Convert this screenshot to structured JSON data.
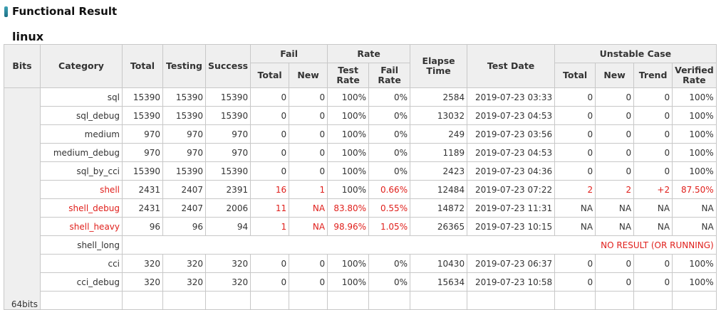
{
  "page": {
    "title": "Functional Result",
    "os": "linux"
  },
  "headers": {
    "bits": "Bits",
    "category": "Category",
    "total": "Total",
    "testing": "Testing",
    "success": "Success",
    "fail": "Fail",
    "fail_total": "Total",
    "fail_new": "New",
    "rate": "Rate",
    "test_rate": "Test Rate",
    "fail_rate": "Fail Rate",
    "elapse_time": "Elapse Time",
    "test_date": "Test Date",
    "unstable_case": "Unstable Case",
    "unstable_total": "Total",
    "unstable_new": "New",
    "unstable_trend": "Trend",
    "verified_rate": "Verified Rate"
  },
  "bits_group": "64bits",
  "rows": [
    {
      "category": "sql",
      "total": "15390",
      "testing": "15390",
      "success": "15390",
      "fail_total": "0",
      "fail_new": "0",
      "test_rate": "100%",
      "fail_rate": "0%",
      "elapse": "2584",
      "date": "2019-07-23 03:33",
      "u_total": "0",
      "u_new": "0",
      "u_trend": "0",
      "verified": "100%",
      "status": "ok"
    },
    {
      "category": "sql_debug",
      "total": "15390",
      "testing": "15390",
      "success": "15390",
      "fail_total": "0",
      "fail_new": "0",
      "test_rate": "100%",
      "fail_rate": "0%",
      "elapse": "13032",
      "date": "2019-07-23 04:53",
      "u_total": "0",
      "u_new": "0",
      "u_trend": "0",
      "verified": "100%",
      "status": "ok"
    },
    {
      "category": "medium",
      "total": "970",
      "testing": "970",
      "success": "970",
      "fail_total": "0",
      "fail_new": "0",
      "test_rate": "100%",
      "fail_rate": "0%",
      "elapse": "249",
      "date": "2019-07-23 03:56",
      "u_total": "0",
      "u_new": "0",
      "u_trend": "0",
      "verified": "100%",
      "status": "ok"
    },
    {
      "category": "medium_debug",
      "total": "970",
      "testing": "970",
      "success": "970",
      "fail_total": "0",
      "fail_new": "0",
      "test_rate": "100%",
      "fail_rate": "0%",
      "elapse": "1189",
      "date": "2019-07-23 04:53",
      "u_total": "0",
      "u_new": "0",
      "u_trend": "0",
      "verified": "100%",
      "status": "ok"
    },
    {
      "category": "sql_by_cci",
      "total": "15390",
      "testing": "15390",
      "success": "15390",
      "fail_total": "0",
      "fail_new": "0",
      "test_rate": "100%",
      "fail_rate": "0%",
      "elapse": "2423",
      "date": "2019-07-23 04:36",
      "u_total": "0",
      "u_new": "0",
      "u_trend": "0",
      "verified": "100%",
      "status": "ok"
    },
    {
      "category": "shell",
      "total": "2431",
      "testing": "2407",
      "success": "2391",
      "fail_total": "16",
      "fail_new": "1",
      "test_rate": "100%",
      "fail_rate": "0.66%",
      "elapse": "12484",
      "date": "2019-07-23 07:22",
      "u_total": "2",
      "u_new": "2",
      "u_trend": "+2",
      "verified": "87.50%",
      "status": "fail"
    },
    {
      "category": "shell_debug",
      "total": "2431",
      "testing": "2407",
      "success": "2006",
      "fail_total": "11",
      "fail_new": "NA",
      "test_rate": "83.80%",
      "fail_rate": "0.55%",
      "elapse": "14872",
      "date": "2019-07-23 11:31",
      "u_total": "NA",
      "u_new": "NA",
      "u_trend": "NA",
      "verified": "NA",
      "status": "fail"
    },
    {
      "category": "shell_heavy",
      "total": "96",
      "testing": "96",
      "success": "94",
      "fail_total": "1",
      "fail_new": "NA",
      "test_rate": "98.96%",
      "fail_rate": "1.05%",
      "elapse": "26365",
      "date": "2019-07-23 10:15",
      "u_total": "NA",
      "u_new": "NA",
      "u_trend": "NA",
      "verified": "NA",
      "status": "fail"
    },
    {
      "category": "shell_long",
      "no_result": "NO RESULT (OR RUNNING)",
      "status": "none"
    },
    {
      "category": "cci",
      "total": "320",
      "testing": "320",
      "success": "320",
      "fail_total": "0",
      "fail_new": "0",
      "test_rate": "100%",
      "fail_rate": "0%",
      "elapse": "10430",
      "date": "2019-07-23 06:37",
      "u_total": "0",
      "u_new": "0",
      "u_trend": "0",
      "verified": "100%",
      "status": "ok"
    },
    {
      "category": "cci_debug",
      "total": "320",
      "testing": "320",
      "success": "320",
      "fail_total": "0",
      "fail_new": "0",
      "test_rate": "100%",
      "fail_rate": "0%",
      "elapse": "15634",
      "date": "2019-07-23 10:58",
      "u_total": "0",
      "u_new": "0",
      "u_trend": "0",
      "verified": "100%",
      "status": "ok"
    }
  ]
}
